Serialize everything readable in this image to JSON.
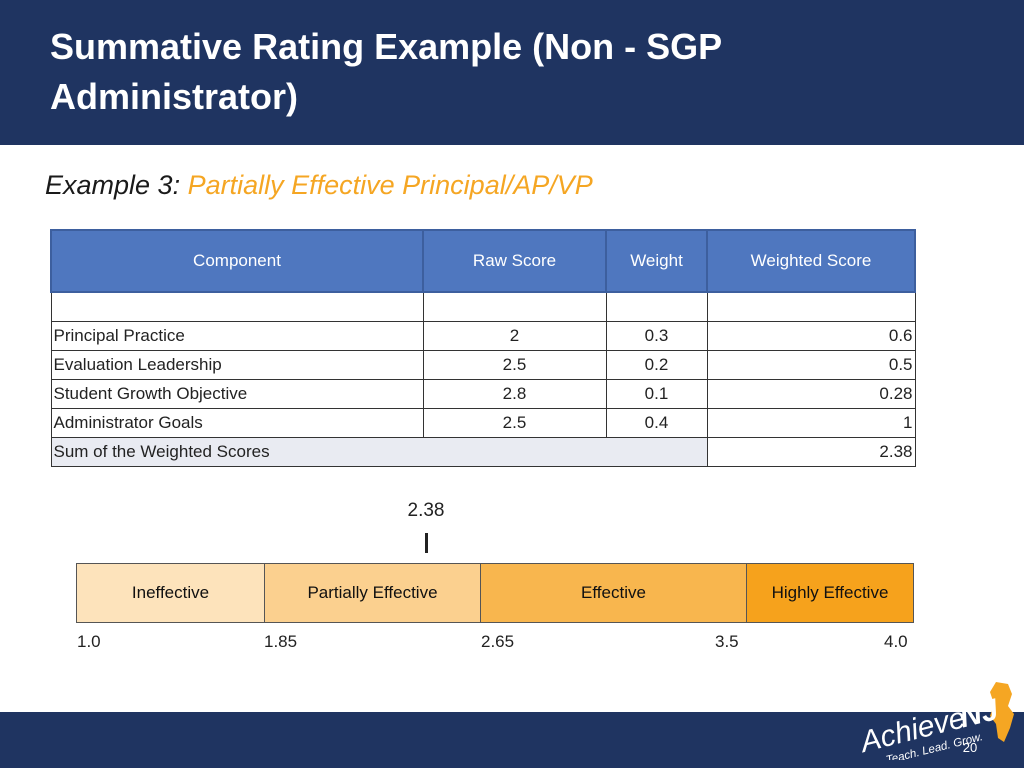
{
  "header": {
    "title": "Summative Rating Example (Non - SGP Administrator)"
  },
  "subtitle": {
    "lead": "Example 3:",
    "accent": "Partially Effective Principal/AP/VP"
  },
  "table": {
    "columns": [
      "Component",
      "Raw Score",
      "Weight",
      "Weighted Score"
    ],
    "rows": [
      {
        "component": "Principal Practice",
        "raw": "2",
        "weight": "0.3",
        "weighted": "0.6"
      },
      {
        "component": "Evaluation Leadership",
        "raw": "2.5",
        "weight": "0.2",
        "weighted": "0.5"
      },
      {
        "component": "Student Growth Objective",
        "raw": "2.8",
        "weight": "0.1",
        "weighted": "0.28"
      },
      {
        "component": "Administrator Goals",
        "raw": "2.5",
        "weight": "0.4",
        "weighted": "1"
      }
    ],
    "sum_label": "Sum of the Weighted Scores",
    "sum_value": "2.38"
  },
  "rating_scale": {
    "marker_value": "2.38",
    "segments": [
      {
        "label": "Ineffective",
        "color": "#fde3bb"
      },
      {
        "label": "Partially Effective",
        "color": "#fbd08f"
      },
      {
        "label": "Effective",
        "color": "#f8b64e"
      },
      {
        "label": "Highly Effective",
        "color": "#f6a21c"
      }
    ],
    "ticks": [
      "1.0",
      "1.85",
      "2.65",
      "3.5",
      "4.0"
    ]
  },
  "logo": {
    "text_achieve": "Achieve",
    "text_nj": "NJ",
    "tagline": "Teach. Lead. Grow."
  },
  "footer": {
    "page_number": "20"
  },
  "colors": {
    "navy": "#1f3461",
    "table_header": "#4f77bf",
    "accent_orange": "#f5a623"
  }
}
